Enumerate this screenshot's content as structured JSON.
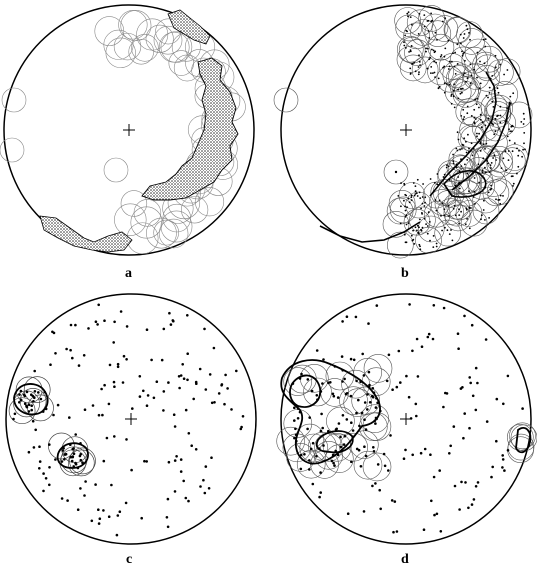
{
  "panels": [
    {
      "id": "a",
      "label": "a",
      "style": "shaded-contours",
      "show_center_cross": true
    },
    {
      "id": "b",
      "label": "b",
      "style": "counting-circles",
      "show_center_cross": true
    },
    {
      "id": "c",
      "label": "c",
      "style": "scatter-with-clusters",
      "show_center_cross": true
    },
    {
      "id": "d",
      "label": "d",
      "style": "scatter-with-merged-contours",
      "show_center_cross": true
    }
  ],
  "colors": {
    "ink": "#000000",
    "paper": "#ffffff",
    "shading": "#555555"
  }
}
